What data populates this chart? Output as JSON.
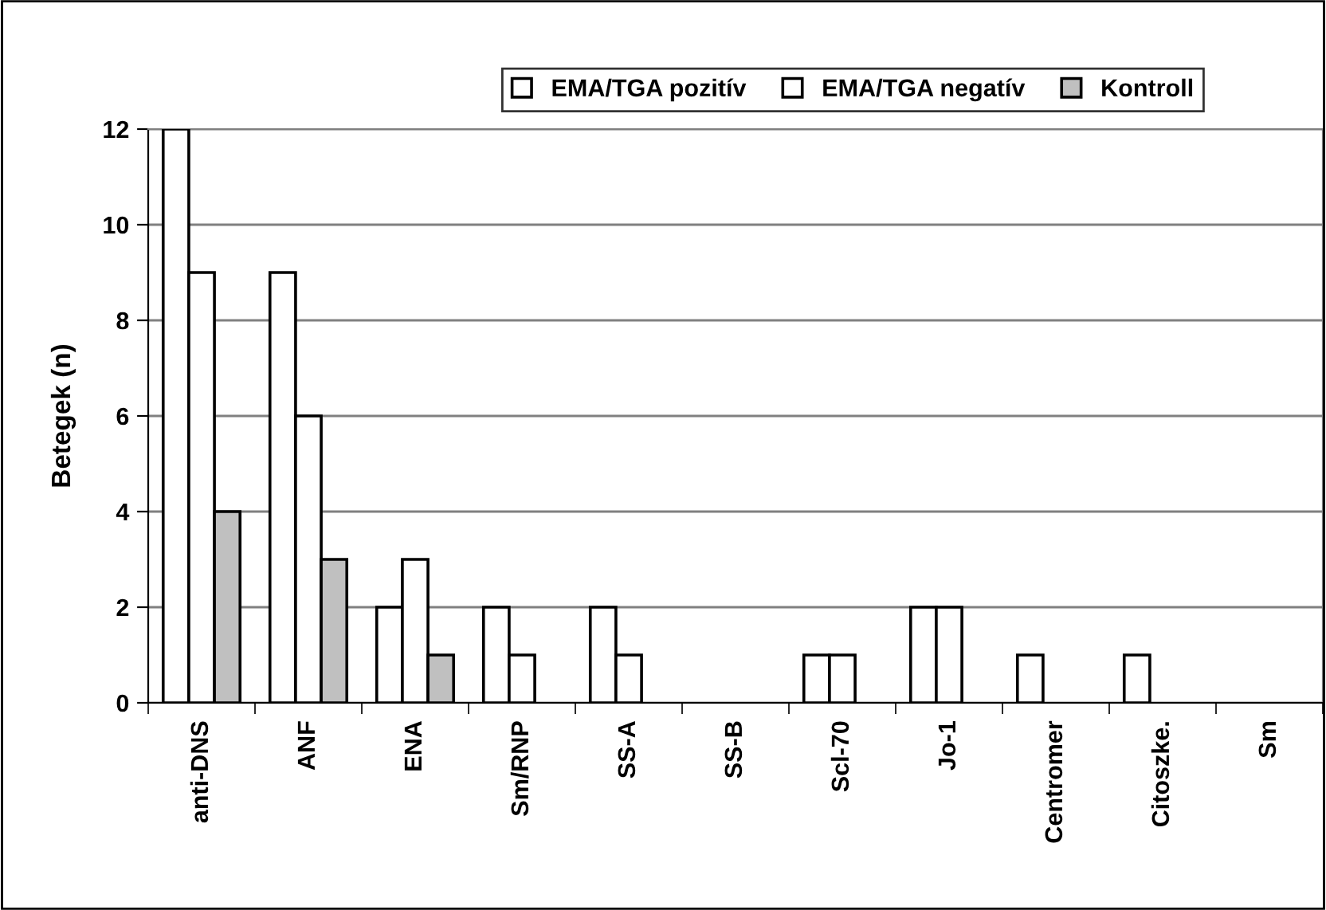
{
  "chart_data": {
    "type": "bar",
    "ylabel": "Betegek (n)",
    "categories": [
      "anti-DNS",
      "ANF",
      "ENA",
      "Sm/RNP",
      "SS-A",
      "SS-B",
      "Scl-70",
      "Jo-1",
      "Centromer",
      "Citoszke.",
      "Sm"
    ],
    "series": [
      {
        "name": "EMA/TGA pozitív",
        "color": "#ffffff",
        "values": [
          12,
          9,
          2,
          2,
          2,
          null,
          1,
          2,
          1,
          1,
          null
        ]
      },
      {
        "name": "EMA/TGA negatív",
        "color": "#ffffff",
        "values": [
          9,
          6,
          3,
          1,
          1,
          null,
          1,
          2,
          null,
          null,
          null
        ]
      },
      {
        "name": "Kontroll",
        "color": "#c0c0c0",
        "values": [
          4,
          3,
          1,
          null,
          null,
          null,
          null,
          null,
          null,
          null,
          null
        ]
      }
    ],
    "ylim": [
      0,
      12
    ],
    "yticks": [
      0,
      2,
      4,
      6,
      8,
      10,
      12
    ],
    "grid": "y",
    "legend": "top"
  }
}
